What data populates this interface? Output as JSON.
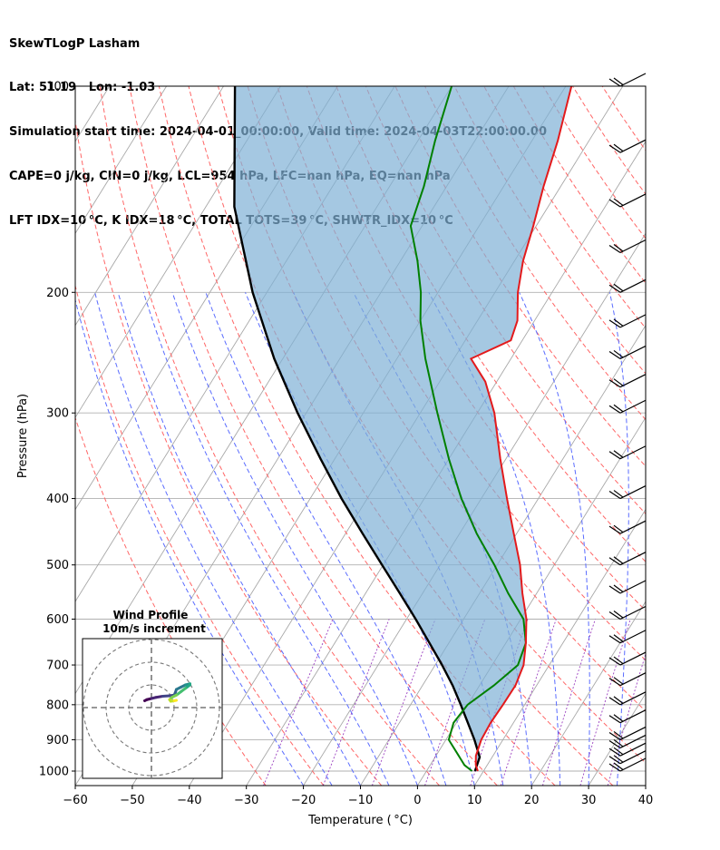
{
  "header": {
    "line1": "SkewTLogP Lasham",
    "line2": "Lat: 51.19   Lon: -1.03",
    "line3": "Simulation start time: 2024-04-01_00:00:00, Valid time: 2024-04-03T22:00:00.00",
    "line4": "CAPE=0 j/kg, CIN=0 j/kg, LCL=954 hPa, LFC=nan hPa, EQ=nan hPa",
    "line5": "LFT IDX=10 °C, K IDX=18 °C, TOTAL TOTS=39 °C, SHWTR_IDX=10 °C"
  },
  "chart_data": {
    "type": "skewt",
    "xlabel": "Temperature ( °C)",
    "ylabel": "Pressure (hPa)",
    "xlim": [
      -60,
      40
    ],
    "ylim": [
      1050,
      100
    ],
    "x_ticks": [
      -60,
      -50,
      -40,
      -30,
      -20,
      -10,
      0,
      10,
      20,
      30,
      40
    ],
    "x_tick_labels": [
      "−60",
      "−50",
      "−40",
      "−30",
      "−20",
      "−10",
      "0",
      "10",
      "20",
      "30",
      "40"
    ],
    "y_ticks": [
      1000,
      900,
      800,
      700,
      600,
      500,
      400,
      300,
      200,
      100
    ],
    "y_tick_labels": [
      "1000",
      "900",
      "800",
      "700",
      "600",
      "500",
      "400",
      "300",
      "200",
      "100"
    ],
    "grid": true,
    "series": [
      {
        "kind": "temperature",
        "color": "#e31a1c",
        "points": [
          [
            1000,
            9.0
          ],
          [
            980,
            8.0
          ],
          [
            950,
            7.0
          ],
          [
            900,
            6.2
          ],
          [
            850,
            6.0
          ],
          [
            800,
            6.2
          ],
          [
            750,
            6.3
          ],
          [
            700,
            5.5
          ],
          [
            650,
            3.5
          ],
          [
            600,
            1.0
          ],
          [
            550,
            -2.5
          ],
          [
            500,
            -6.0
          ],
          [
            450,
            -10.5
          ],
          [
            400,
            -15.5
          ],
          [
            350,
            -21.0
          ],
          [
            300,
            -27.0
          ],
          [
            270,
            -32.0
          ],
          [
            250,
            -37.0
          ],
          [
            235,
            -32.0
          ],
          [
            220,
            -33.0
          ],
          [
            200,
            -36.0
          ],
          [
            180,
            -38.5
          ],
          [
            160,
            -40.5
          ],
          [
            140,
            -43.0
          ],
          [
            120,
            -45.5
          ],
          [
            100,
            -49.0
          ]
        ]
      },
      {
        "kind": "dewpoint",
        "color": "#008000",
        "points": [
          [
            1000,
            8.0
          ],
          [
            980,
            6.0
          ],
          [
            950,
            4.0
          ],
          [
            900,
            0.5
          ],
          [
            850,
            -0.5
          ],
          [
            800,
            0.0
          ],
          [
            750,
            2.5
          ],
          [
            700,
            4.5
          ],
          [
            650,
            3.5
          ],
          [
            600,
            0.5
          ],
          [
            550,
            -5.0
          ],
          [
            500,
            -10.5
          ],
          [
            450,
            -17.0
          ],
          [
            400,
            -23.5
          ],
          [
            350,
            -30.0
          ],
          [
            300,
            -37.0
          ],
          [
            250,
            -45.0
          ],
          [
            220,
            -50.0
          ],
          [
            200,
            -53.0
          ],
          [
            180,
            -57.0
          ],
          [
            160,
            -62.0
          ],
          [
            140,
            -64.0
          ],
          [
            120,
            -67.0
          ],
          [
            100,
            -70.0
          ]
        ]
      },
      {
        "kind": "parcel",
        "color": "#000000",
        "points": [
          [
            1000,
            8.5
          ],
          [
            954,
            7.8
          ],
          [
            900,
            5.0
          ],
          [
            850,
            2.0
          ],
          [
            800,
            -1.2
          ],
          [
            750,
            -4.7
          ],
          [
            700,
            -8.8
          ],
          [
            650,
            -13.4
          ],
          [
            600,
            -18.4
          ],
          [
            550,
            -24.0
          ],
          [
            500,
            -30.2
          ],
          [
            450,
            -37.0
          ],
          [
            400,
            -44.5
          ],
          [
            350,
            -52.5
          ],
          [
            300,
            -61.5
          ],
          [
            250,
            -71.5
          ],
          [
            200,
            -82.5
          ],
          [
            150,
            -95.0
          ],
          [
            100,
            -108.0
          ]
        ]
      }
    ],
    "wind_barbs": {
      "levels": [
        1000,
        975,
        950,
        925,
        900,
        850,
        800,
        750,
        700,
        650,
        600,
        550,
        500,
        450,
        400,
        350,
        300,
        275,
        250,
        225,
        200,
        175,
        150,
        125,
        100
      ]
    },
    "hodograph": {
      "title": "Wind Profile",
      "subtitle": "10m/s increment",
      "rings": 3,
      "points": [
        [
          -3,
          3
        ],
        [
          -2,
          3.5
        ],
        [
          0,
          4
        ],
        [
          2,
          4.5
        ],
        [
          5,
          5
        ],
        [
          8,
          5.2
        ],
        [
          10,
          5.5
        ],
        [
          10.5,
          6.5
        ],
        [
          11,
          8
        ],
        [
          13,
          9
        ],
        [
          15,
          10
        ],
        [
          17,
          10.5
        ],
        [
          17,
          10
        ],
        [
          15,
          8.5
        ],
        [
          13,
          7
        ],
        [
          11,
          5.5
        ],
        [
          9,
          4.5
        ],
        [
          8,
          3.5
        ],
        [
          8.5,
          2.8
        ],
        [
          10,
          3
        ],
        [
          11,
          3.2
        ]
      ]
    }
  }
}
